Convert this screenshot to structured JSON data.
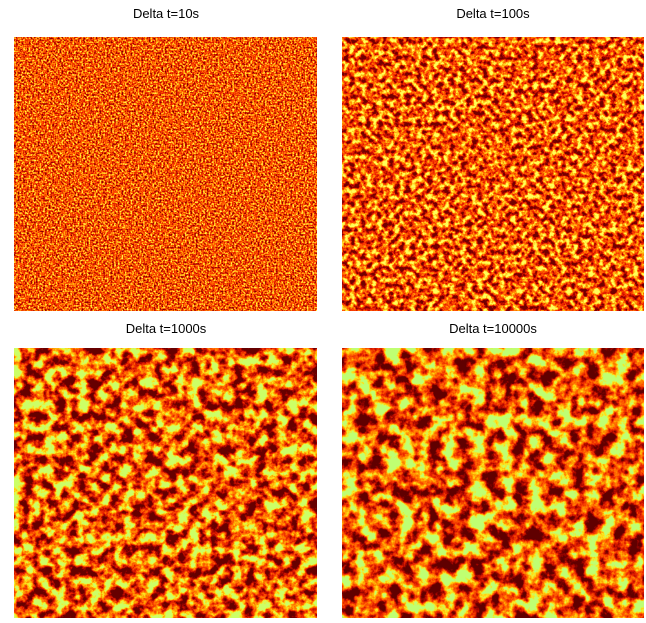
{
  "panels": [
    {
      "title": "Delta t=10s"
    },
    {
      "title": "Delta t=100s"
    },
    {
      "title": "Delta t=1000s"
    },
    {
      "title": "Delta t=10000s"
    }
  ]
}
